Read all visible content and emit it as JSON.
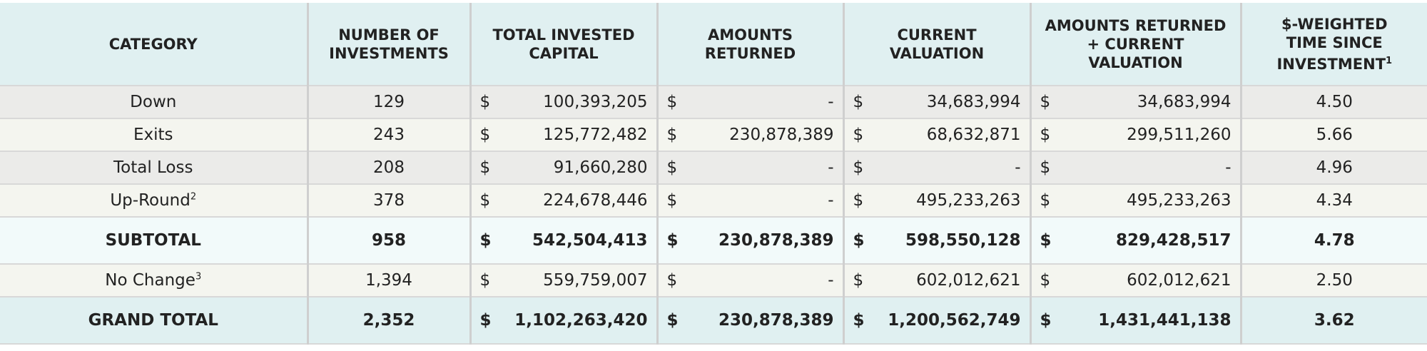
{
  "currency": "$",
  "header": {
    "columns": [
      {
        "lines": [
          "CATEGORY"
        ]
      },
      {
        "lines": [
          "NUMBER OF",
          "INVESTMENTS"
        ]
      },
      {
        "lines": [
          "TOTAL INVESTED",
          "CAPITAL"
        ]
      },
      {
        "lines": [
          "AMOUNTS",
          "RETURNED"
        ]
      },
      {
        "lines": [
          "CURRENT",
          "VALUATION"
        ]
      },
      {
        "lines": [
          "AMOUNTS RETURNED",
          "+ CURRENT",
          "VALUATION"
        ]
      },
      {
        "lines": [
          "$-WEIGHTED",
          "TIME SINCE",
          "INVESTMENT"
        ],
        "footnote": "1"
      }
    ]
  },
  "table": {
    "rows": [
      {
        "category": "Down",
        "count": "129",
        "invested": "100,393,205",
        "returned": "-",
        "valuation": "34,683,994",
        "total": "34,683,994",
        "time": "4.50"
      },
      {
        "category": "Exits",
        "count": "243",
        "invested": "125,772,482",
        "returned": "230,878,389",
        "valuation": "68,632,871",
        "total": "299,511,260",
        "time": "5.66"
      },
      {
        "category": "Total Loss",
        "count": "208",
        "invested": "91,660,280",
        "returned": "-",
        "valuation": "-",
        "total": "-",
        "time": "4.96"
      },
      {
        "category": "Up-Round",
        "footnote": "2",
        "count": "378",
        "invested": "224,678,446",
        "returned": "-",
        "valuation": "495,233,263",
        "total": "495,233,263",
        "time": "4.34"
      },
      {
        "category": "SUBTOTAL",
        "bold": true,
        "count": "958",
        "invested": "542,504,413",
        "returned": "230,878,389",
        "valuation": "598,550,128",
        "total": "829,428,517",
        "time": "4.78"
      },
      {
        "category": "No Change",
        "footnote": "3",
        "count": "1,394",
        "invested": "559,759,007",
        "returned": "-",
        "valuation": "602,012,621",
        "total": "602,012,621",
        "time": "2.50"
      },
      {
        "category": "GRAND TOTAL",
        "bold": true,
        "count": "2,352",
        "invested": "1,102,263,420",
        "returned": "230,878,389",
        "valuation": "1,200,562,749",
        "total": "1,431,441,138",
        "time": "3.62"
      }
    ]
  }
}
